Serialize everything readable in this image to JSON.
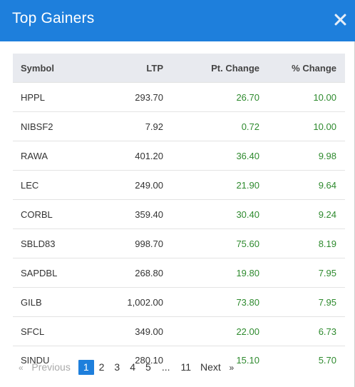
{
  "modal": {
    "title": "Top Gainers",
    "close_icon": "close-icon"
  },
  "table": {
    "headers": [
      "Symbol",
      "LTP",
      "Pt. Change",
      "% Change"
    ],
    "rows": [
      {
        "symbol": "HPPL",
        "ltp": "293.70",
        "pt": "26.70",
        "pct": "10.00"
      },
      {
        "symbol": "NIBSF2",
        "ltp": "7.92",
        "pt": "0.72",
        "pct": "10.00"
      },
      {
        "symbol": "RAWA",
        "ltp": "401.20",
        "pt": "36.40",
        "pct": "9.98"
      },
      {
        "symbol": "LEC",
        "ltp": "249.00",
        "pt": "21.90",
        "pct": "9.64"
      },
      {
        "symbol": "CORBL",
        "ltp": "359.40",
        "pt": "30.40",
        "pct": "9.24"
      },
      {
        "symbol": "SBLD83",
        "ltp": "998.70",
        "pt": "75.60",
        "pct": "8.19"
      },
      {
        "symbol": "SAPDBL",
        "ltp": "268.80",
        "pt": "19.80",
        "pct": "7.95"
      },
      {
        "symbol": "GILB",
        "ltp": "1,002.00",
        "pt": "73.80",
        "pct": "7.95"
      },
      {
        "symbol": "SFCL",
        "ltp": "349.00",
        "pt": "22.00",
        "pct": "6.73"
      },
      {
        "symbol": "SINDU",
        "ltp": "280.10",
        "pt": "15.10",
        "pct": "5.70"
      }
    ]
  },
  "pagination": {
    "prev_arrow": "«",
    "prev_label": "Previous",
    "pages": [
      "1",
      "2",
      "3",
      "4",
      "5"
    ],
    "ellipsis": "...",
    "last_page": "11",
    "next_label": "Next",
    "next_arrow": "»",
    "active_page": "1"
  },
  "colors": {
    "header_bg": "#1e7fdc",
    "positive": "#2e8a2e",
    "table_header_bg": "#e8eaef"
  }
}
